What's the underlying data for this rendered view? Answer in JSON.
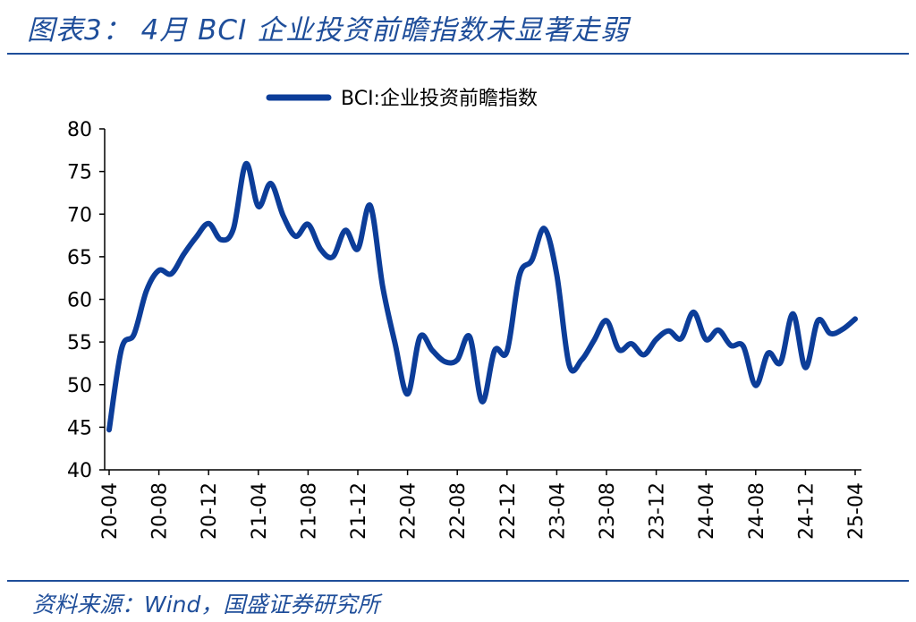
{
  "header": {
    "title": "图表3： 4月 BCI 企业投资前瞻指数未显著走弱"
  },
  "footer": {
    "source": "资料来源：Wind，国盛证券研究所"
  },
  "colors": {
    "accent": "#1f4e9a",
    "series": "#0c3d99",
    "axis": "#000000"
  },
  "chart_data": {
    "type": "line",
    "title": "",
    "xlabel": "",
    "ylabel": "",
    "ylim": [
      40,
      80
    ],
    "yticks": [
      40,
      45,
      50,
      55,
      60,
      65,
      70,
      75,
      80
    ],
    "grid": false,
    "legend_position": "top-center",
    "x": [
      "20-04",
      "20-05",
      "20-06",
      "20-07",
      "20-08",
      "20-09",
      "20-10",
      "20-11",
      "20-12",
      "21-01",
      "21-02",
      "21-03",
      "21-04",
      "21-05",
      "21-06",
      "21-07",
      "21-08",
      "21-09",
      "21-10",
      "21-11",
      "21-12",
      "22-01",
      "22-02",
      "22-03",
      "22-04",
      "22-05",
      "22-06",
      "22-07",
      "22-08",
      "22-09",
      "22-10",
      "22-11",
      "22-12",
      "23-01",
      "23-02",
      "23-03",
      "23-04",
      "23-05",
      "23-06",
      "23-07",
      "23-08",
      "23-09",
      "23-10",
      "23-11",
      "23-12",
      "24-01",
      "24-02",
      "24-03",
      "24-04",
      "24-05",
      "24-06",
      "24-07",
      "24-08",
      "24-09",
      "24-10",
      "24-11",
      "24-12",
      "25-01",
      "25-02",
      "25-03",
      "25-04"
    ],
    "x_tick_labels": [
      "20-04",
      "20-08",
      "20-12",
      "21-04",
      "21-08",
      "21-12",
      "22-04",
      "22-08",
      "22-12",
      "23-04",
      "23-08",
      "23-12",
      "24-04",
      "24-08",
      "24-12",
      "25-04"
    ],
    "series": [
      {
        "name": "BCI:企业投资前瞻指数",
        "values": [
          44.7,
          54.2,
          55.9,
          61.0,
          63.4,
          63.0,
          65.3,
          67.3,
          68.9,
          67.0,
          68.3,
          75.9,
          70.9,
          73.6,
          69.8,
          67.4,
          68.8,
          65.9,
          65.0,
          68.1,
          65.9,
          71.0,
          61.5,
          54.8,
          48.9,
          55.6,
          54.0,
          52.7,
          52.9,
          55.6,
          48.0,
          54.0,
          53.9,
          62.8,
          64.6,
          68.3,
          62.9,
          52.3,
          52.9,
          55.2,
          57.5,
          54.1,
          54.8,
          53.5,
          55.3,
          56.3,
          55.4,
          58.5,
          55.3,
          56.4,
          54.6,
          54.5,
          49.9,
          53.7,
          52.6,
          58.3,
          52.0,
          57.5,
          56.0,
          56.5,
          57.7
        ]
      }
    ]
  }
}
